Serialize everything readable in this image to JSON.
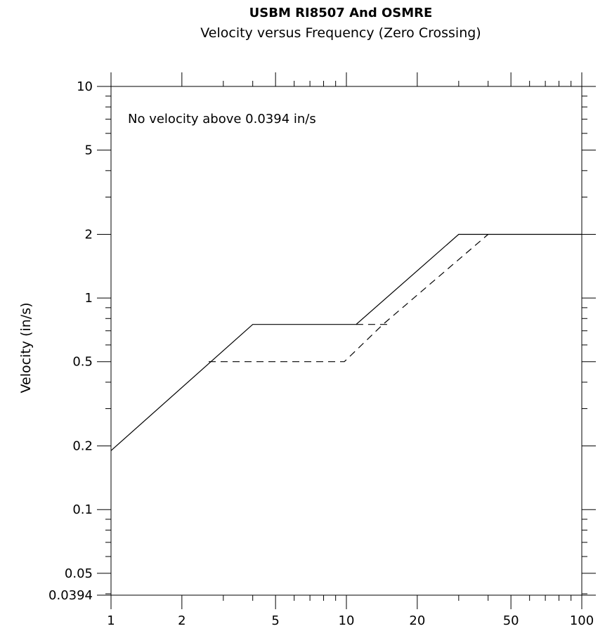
{
  "chart_data": {
    "type": "line",
    "title": "USBM RI8507 And OSMRE",
    "subtitle": "Velocity versus Frequency (Zero Crossing)",
    "xlabel": "",
    "ylabel": "Velocity (in/s)",
    "xscale": "log",
    "yscale": "log",
    "xlim": [
      1,
      100
    ],
    "ylim": [
      0.0394,
      10
    ],
    "x_ticks": [
      1,
      2,
      5,
      10,
      20,
      50,
      100
    ],
    "x_tick_labels": [
      "1",
      "2",
      "5",
      "10",
      "20",
      "50",
      "100"
    ],
    "y_ticks": [
      0.0394,
      0.05,
      0.1,
      0.2,
      0.5,
      1,
      2,
      5,
      10
    ],
    "y_tick_labels": [
      "0.0394",
      "0.05",
      "0.1",
      "0.2",
      "0.5",
      "1",
      "2",
      "5",
      "10"
    ],
    "annotation": "No velocity above 0.0394 in/s",
    "grid": false,
    "series": [
      {
        "style": "solid",
        "points": [
          [
            1,
            0.19
          ],
          [
            4,
            0.75
          ],
          [
            11,
            0.75
          ],
          [
            30,
            2.0
          ],
          [
            100,
            2.0
          ]
        ]
      },
      {
        "style": "dashed",
        "points": [
          [
            2.6,
            0.5
          ],
          [
            9.8,
            0.5
          ],
          [
            14.3,
            0.75
          ],
          [
            40,
            2.0
          ]
        ]
      },
      {
        "style": "dashed",
        "points": [
          [
            11,
            0.75
          ],
          [
            15.2,
            0.75
          ]
        ]
      }
    ],
    "colors": {
      "line": "#000000",
      "axis": "#000000",
      "background": "#ffffff"
    }
  }
}
